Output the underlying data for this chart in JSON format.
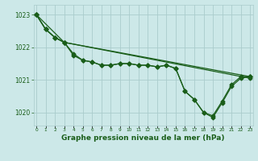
{
  "background_color": "#cce8e8",
  "grid_color": "#aacccc",
  "line_color": "#1a5e1a",
  "xlabel": "Graphe pression niveau de la mer (hPa)",
  "xlabel_fontsize": 6.5,
  "yticks": [
    1020,
    1021,
    1022,
    1023
  ],
  "xticks": [
    0,
    1,
    2,
    3,
    4,
    5,
    6,
    7,
    8,
    9,
    10,
    11,
    12,
    13,
    14,
    15,
    16,
    17,
    18,
    19,
    20,
    21,
    22,
    23
  ],
  "xlim": [
    -0.3,
    23.3
  ],
  "ylim": [
    1019.6,
    1023.3
  ],
  "line1_x": [
    0,
    1,
    2,
    3,
    23
  ],
  "line1_y": [
    1023.0,
    1022.55,
    1022.3,
    1022.15,
    1021.1
  ],
  "line2_x": [
    0,
    1,
    2,
    3,
    4,
    5,
    6,
    7,
    8,
    9,
    10,
    11,
    12,
    13,
    14,
    15,
    16,
    17,
    18,
    19,
    20,
    21,
    22,
    23
  ],
  "line2_y": [
    1023.0,
    1022.55,
    1022.3,
    1022.15,
    1021.8,
    1021.6,
    1021.55,
    1021.45,
    1021.45,
    1021.5,
    1021.5,
    1021.45,
    1021.45,
    1021.4,
    1021.45,
    1021.35,
    1020.65,
    1020.4,
    1020.0,
    1019.9,
    1020.35,
    1020.85,
    1021.1,
    1021.1
  ],
  "line3_x": [
    0,
    1,
    2,
    3,
    4,
    5,
    6,
    7,
    8,
    9,
    10,
    11,
    12,
    13,
    14,
    15,
    16,
    17,
    18,
    19,
    20,
    21,
    22,
    23
  ],
  "line3_y": [
    1023.0,
    1022.55,
    1022.3,
    1022.15,
    1021.75,
    1021.6,
    1021.55,
    1021.45,
    1021.45,
    1021.5,
    1021.5,
    1021.45,
    1021.45,
    1021.4,
    1021.45,
    1021.35,
    1020.65,
    1020.4,
    1020.0,
    1019.85,
    1020.3,
    1020.8,
    1021.05,
    1021.1
  ],
  "line4_x": [
    0,
    3,
    23
  ],
  "line4_y": [
    1023.0,
    1022.15,
    1021.05
  ]
}
